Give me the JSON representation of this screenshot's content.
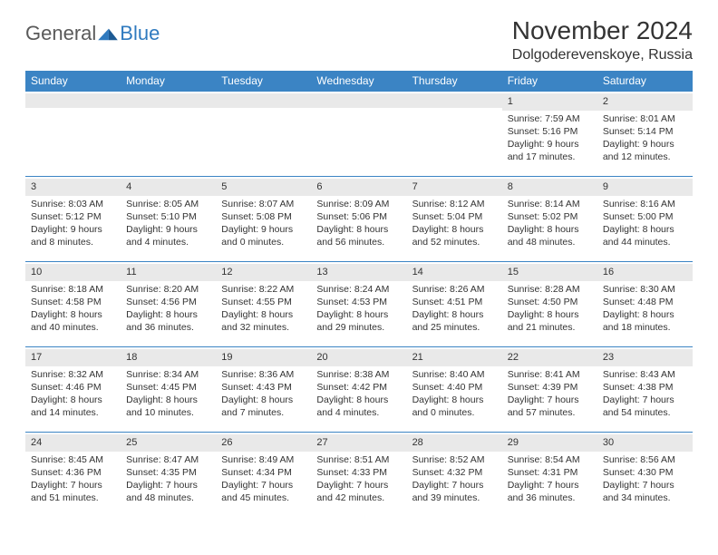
{
  "logo": {
    "general": "General",
    "blue": "Blue"
  },
  "title": "November 2024",
  "location": "Dolgoderevenskoye, Russia",
  "colors": {
    "header_bg": "#3b84c4",
    "header_fg": "#ffffff",
    "daynum_bg": "#e9e9e9",
    "border": "#3b84c4",
    "text": "#333333",
    "logo_gray": "#5a5a5a",
    "logo_blue": "#2f7abf",
    "background": "#ffffff"
  },
  "weekdays": [
    "Sunday",
    "Monday",
    "Tuesday",
    "Wednesday",
    "Thursday",
    "Friday",
    "Saturday"
  ],
  "weeks": [
    [
      null,
      null,
      null,
      null,
      null,
      {
        "n": "1",
        "sr": "7:59 AM",
        "ss": "5:16 PM",
        "dl": "9 hours and 17 minutes."
      },
      {
        "n": "2",
        "sr": "8:01 AM",
        "ss": "5:14 PM",
        "dl": "9 hours and 12 minutes."
      }
    ],
    [
      {
        "n": "3",
        "sr": "8:03 AM",
        "ss": "5:12 PM",
        "dl": "9 hours and 8 minutes."
      },
      {
        "n": "4",
        "sr": "8:05 AM",
        "ss": "5:10 PM",
        "dl": "9 hours and 4 minutes."
      },
      {
        "n": "5",
        "sr": "8:07 AM",
        "ss": "5:08 PM",
        "dl": "9 hours and 0 minutes."
      },
      {
        "n": "6",
        "sr": "8:09 AM",
        "ss": "5:06 PM",
        "dl": "8 hours and 56 minutes."
      },
      {
        "n": "7",
        "sr": "8:12 AM",
        "ss": "5:04 PM",
        "dl": "8 hours and 52 minutes."
      },
      {
        "n": "8",
        "sr": "8:14 AM",
        "ss": "5:02 PM",
        "dl": "8 hours and 48 minutes."
      },
      {
        "n": "9",
        "sr": "8:16 AM",
        "ss": "5:00 PM",
        "dl": "8 hours and 44 minutes."
      }
    ],
    [
      {
        "n": "10",
        "sr": "8:18 AM",
        "ss": "4:58 PM",
        "dl": "8 hours and 40 minutes."
      },
      {
        "n": "11",
        "sr": "8:20 AM",
        "ss": "4:56 PM",
        "dl": "8 hours and 36 minutes."
      },
      {
        "n": "12",
        "sr": "8:22 AM",
        "ss": "4:55 PM",
        "dl": "8 hours and 32 minutes."
      },
      {
        "n": "13",
        "sr": "8:24 AM",
        "ss": "4:53 PM",
        "dl": "8 hours and 29 minutes."
      },
      {
        "n": "14",
        "sr": "8:26 AM",
        "ss": "4:51 PM",
        "dl": "8 hours and 25 minutes."
      },
      {
        "n": "15",
        "sr": "8:28 AM",
        "ss": "4:50 PM",
        "dl": "8 hours and 21 minutes."
      },
      {
        "n": "16",
        "sr": "8:30 AM",
        "ss": "4:48 PM",
        "dl": "8 hours and 18 minutes."
      }
    ],
    [
      {
        "n": "17",
        "sr": "8:32 AM",
        "ss": "4:46 PM",
        "dl": "8 hours and 14 minutes."
      },
      {
        "n": "18",
        "sr": "8:34 AM",
        "ss": "4:45 PM",
        "dl": "8 hours and 10 minutes."
      },
      {
        "n": "19",
        "sr": "8:36 AM",
        "ss": "4:43 PM",
        "dl": "8 hours and 7 minutes."
      },
      {
        "n": "20",
        "sr": "8:38 AM",
        "ss": "4:42 PM",
        "dl": "8 hours and 4 minutes."
      },
      {
        "n": "21",
        "sr": "8:40 AM",
        "ss": "4:40 PM",
        "dl": "8 hours and 0 minutes."
      },
      {
        "n": "22",
        "sr": "8:41 AM",
        "ss": "4:39 PM",
        "dl": "7 hours and 57 minutes."
      },
      {
        "n": "23",
        "sr": "8:43 AM",
        "ss": "4:38 PM",
        "dl": "7 hours and 54 minutes."
      }
    ],
    [
      {
        "n": "24",
        "sr": "8:45 AM",
        "ss": "4:36 PM",
        "dl": "7 hours and 51 minutes."
      },
      {
        "n": "25",
        "sr": "8:47 AM",
        "ss": "4:35 PM",
        "dl": "7 hours and 48 minutes."
      },
      {
        "n": "26",
        "sr": "8:49 AM",
        "ss": "4:34 PM",
        "dl": "7 hours and 45 minutes."
      },
      {
        "n": "27",
        "sr": "8:51 AM",
        "ss": "4:33 PM",
        "dl": "7 hours and 42 minutes."
      },
      {
        "n": "28",
        "sr": "8:52 AM",
        "ss": "4:32 PM",
        "dl": "7 hours and 39 minutes."
      },
      {
        "n": "29",
        "sr": "8:54 AM",
        "ss": "4:31 PM",
        "dl": "7 hours and 36 minutes."
      },
      {
        "n": "30",
        "sr": "8:56 AM",
        "ss": "4:30 PM",
        "dl": "7 hours and 34 minutes."
      }
    ]
  ],
  "labels": {
    "sunrise": "Sunrise:",
    "sunset": "Sunset:",
    "daylight": "Daylight:"
  }
}
